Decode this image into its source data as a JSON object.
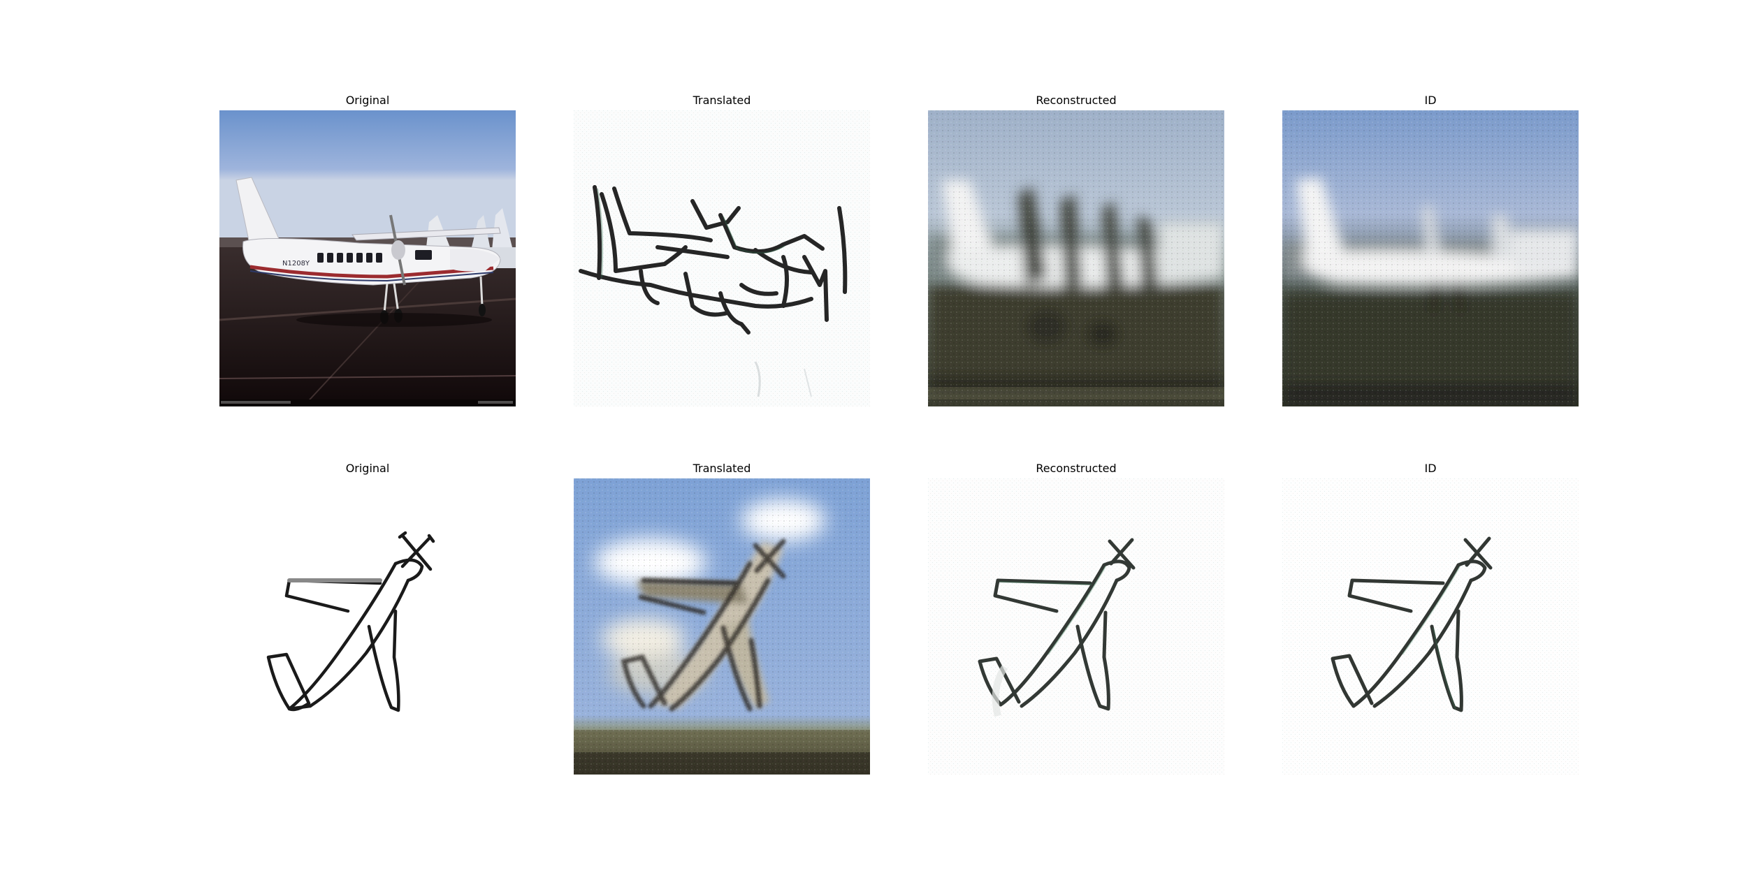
{
  "figure": {
    "rows": [
      {
        "panels": [
          {
            "title": "Original",
            "content": "photo-airplane"
          },
          {
            "title": "Translated",
            "content": "sketch-from-photo"
          },
          {
            "title": "Reconstructed",
            "content": "blurry-photo-reconstruction"
          },
          {
            "title": "ID",
            "content": "blurry-photo-identity"
          }
        ]
      },
      {
        "panels": [
          {
            "title": "Original",
            "content": "sketch-airplane"
          },
          {
            "title": "Translated",
            "content": "photo-from-sketch"
          },
          {
            "title": "Reconstructed",
            "content": "sketch-reconstruction"
          },
          {
            "title": "ID",
            "content": "sketch-identity"
          }
        ]
      }
    ],
    "photo_tail_number": "N1208Y",
    "colors": {
      "sky_top": "#6a92cc",
      "sky_bottom": "#c9d3e4",
      "tarmac": "#2a1f1f",
      "tarmac_dark": "#140c0d",
      "stripe_red": "#9b2b2f",
      "sketch_line": "#1a1a1a"
    }
  }
}
